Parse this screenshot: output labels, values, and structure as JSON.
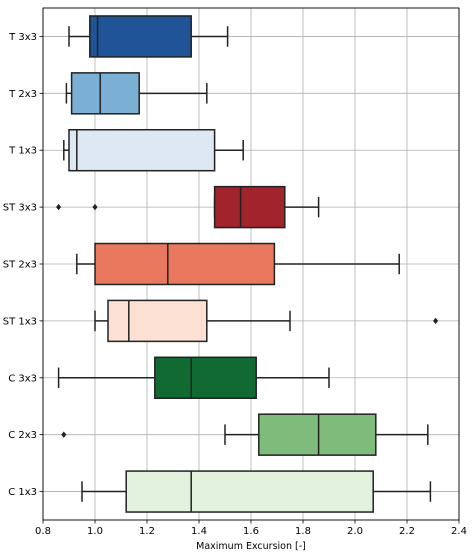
{
  "chart_data": {
    "type": "boxplot",
    "orientation": "horizontal",
    "title": "",
    "xlabel": "Maximum Excursion [-]",
    "ylabel": "",
    "xlim": [
      0.8,
      2.4
    ],
    "xticks": [
      0.8,
      1.0,
      1.2,
      1.4,
      1.6,
      1.8,
      2.0,
      2.2,
      2.4
    ],
    "xtick_labels": [
      "0.8",
      "1.0",
      "1.2",
      "1.4",
      "1.6",
      "1.8",
      "2.0",
      "2.2",
      "2.4"
    ],
    "grid": true,
    "categories": [
      "T 3x3",
      "T 2x3",
      "T 1x3",
      "ST 3x3",
      "ST 2x3",
      "ST 1x3",
      "C 3x3",
      "C 2x3",
      "C 1x3"
    ],
    "boxes": [
      {
        "label": "T 3x3",
        "whisker_low": 0.9,
        "q1": 0.98,
        "median": 1.01,
        "q3": 1.37,
        "whisker_high": 1.51,
        "outliers": [],
        "color": "#1f5597"
      },
      {
        "label": "T 2x3",
        "whisker_low": 0.89,
        "q1": 0.91,
        "median": 1.02,
        "q3": 1.17,
        "whisker_high": 1.43,
        "outliers": [],
        "color": "#7bafd4"
      },
      {
        "label": "T 1x3",
        "whisker_low": 0.88,
        "q1": 0.9,
        "median": 0.93,
        "q3": 1.46,
        "whisker_high": 1.57,
        "outliers": [],
        "color": "#dde8f3"
      },
      {
        "label": "ST 3x3",
        "whisker_low": 1.46,
        "q1": 1.46,
        "median": 1.56,
        "q3": 1.73,
        "whisker_high": 1.86,
        "outliers": [
          0.86,
          1.0
        ],
        "color": "#a1232b"
      },
      {
        "label": "ST 2x3",
        "whisker_low": 0.93,
        "q1": 1.0,
        "median": 1.28,
        "q3": 1.69,
        "whisker_high": 2.17,
        "outliers": [],
        "color": "#e9785f"
      },
      {
        "label": "ST 1x3",
        "whisker_low": 1.0,
        "q1": 1.05,
        "median": 1.13,
        "q3": 1.43,
        "whisker_high": 1.75,
        "outliers": [
          2.31
        ],
        "color": "#fbe0d3"
      },
      {
        "label": "C 3x3",
        "whisker_low": 0.86,
        "q1": 1.23,
        "median": 1.37,
        "q3": 1.62,
        "whisker_high": 1.9,
        "outliers": [],
        "color": "#106a32"
      },
      {
        "label": "C 2x3",
        "whisker_low": 1.5,
        "q1": 1.63,
        "median": 1.86,
        "q3": 2.08,
        "whisker_high": 2.28,
        "outliers": [
          0.88
        ],
        "color": "#7fbc7b"
      },
      {
        "label": "C 1x3",
        "whisker_low": 0.95,
        "q1": 1.12,
        "median": 1.37,
        "q3": 2.07,
        "whisker_high": 2.29,
        "outliers": [],
        "color": "#e3f1df"
      }
    ]
  }
}
